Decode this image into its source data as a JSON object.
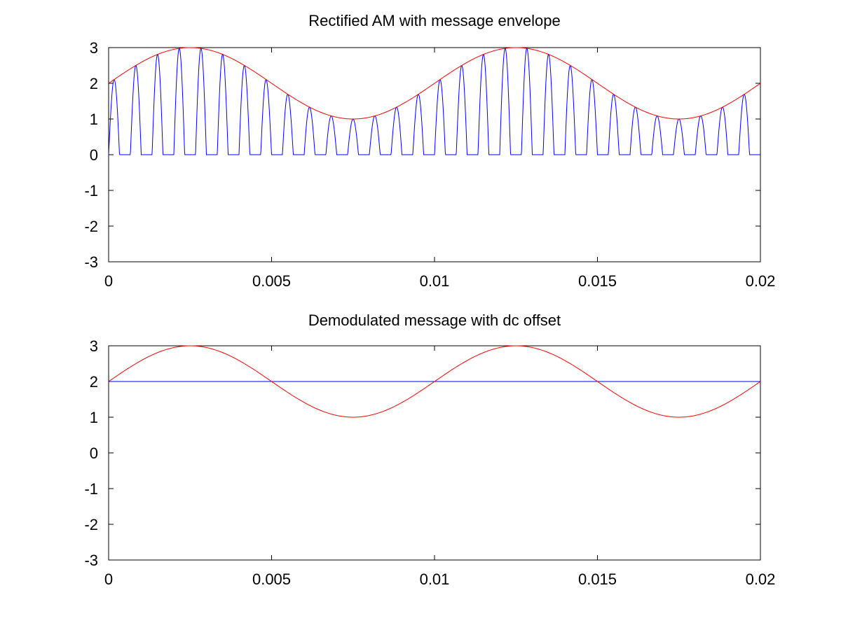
{
  "chart_data": [
    {
      "type": "line",
      "title": "Rectified AM with message envelope",
      "xlabel": "",
      "ylabel": "",
      "xlim": [
        0,
        0.02
      ],
      "ylim": [
        -3,
        3
      ],
      "xticks": [
        "0",
        "0.005",
        "0.01",
        "0.015",
        "0.02"
      ],
      "yticks": [
        "-3",
        "-2",
        "-1",
        "0",
        "1",
        "2",
        "3"
      ],
      "grid": false,
      "legend": "none",
      "series": [
        {
          "color": "#0000ff",
          "kind": "half-wave rectified AM",
          "dc_offset": 2,
          "message_amplitude": 1,
          "message_frequency_hz": 100,
          "carrier_frequency_hz": 1500,
          "samples": 2000
        },
        {
          "color": "#ff0000",
          "kind": "envelope",
          "dc_offset": 2,
          "message_amplitude": 1,
          "message_frequency_hz": 100,
          "samples": 600
        }
      ]
    },
    {
      "type": "line",
      "title": "Demodulated message with dc offset",
      "xlabel": "",
      "ylabel": "",
      "xlim": [
        0,
        0.02
      ],
      "ylim": [
        -3,
        3
      ],
      "xticks": [
        "0",
        "0.005",
        "0.01",
        "0.015",
        "0.02"
      ],
      "yticks": [
        "-3",
        "-2",
        "-1",
        "0",
        "1",
        "2",
        "3"
      ],
      "grid": false,
      "legend": "none",
      "series": [
        {
          "color": "#0000ff",
          "kind": "dc offset",
          "value": 2
        },
        {
          "color": "#ff0000",
          "kind": "message with dc offset",
          "dc_offset": 2,
          "message_amplitude": 1,
          "message_frequency_hz": 100,
          "samples": 600
        }
      ]
    }
  ]
}
